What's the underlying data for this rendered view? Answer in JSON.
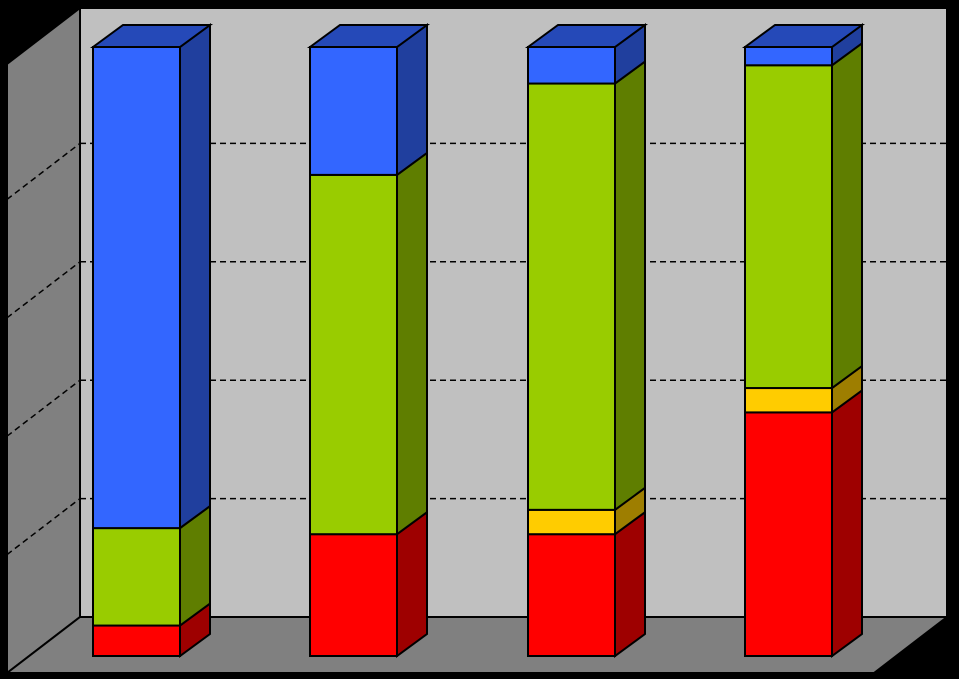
{
  "chart_data": {
    "type": "bar",
    "stacked": true,
    "three_d": true,
    "percent_stacked": true,
    "title": "",
    "xlabel": "",
    "ylabel": "",
    "ylim": [
      0,
      100
    ],
    "grid": true,
    "legend": "none",
    "categories": [
      "",
      "",
      "",
      ""
    ],
    "series": [
      {
        "color": "#ff0000",
        "values": [
          5,
          20,
          20,
          40
        ]
      },
      {
        "color": "#ffcc00",
        "values": [
          0,
          0,
          4,
          4
        ]
      },
      {
        "color": "#99cc00",
        "values": [
          16,
          59,
          70,
          53
        ]
      },
      {
        "color": "#3366ff",
        "values": [
          79,
          21,
          6,
          3
        ]
      }
    ]
  },
  "colors": {
    "background": "#000000",
    "back_wall": "#c0c0c0",
    "side_wall": "#808080",
    "floor": "#808080",
    "gridline": "#000000"
  }
}
